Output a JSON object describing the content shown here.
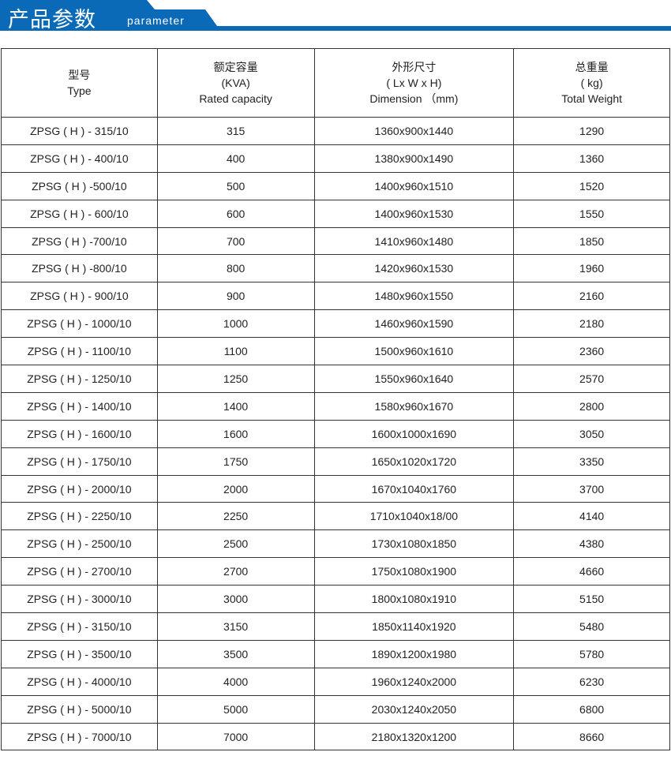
{
  "banner": {
    "title": "产品参数",
    "subtitle": "parameter",
    "color": "#0a6ab8"
  },
  "headers": [
    [
      "型号",
      "Type"
    ],
    [
      "额定容量",
      "(KVA)",
      "Rated capacity"
    ],
    [
      "外形尺寸",
      "( Lx W x H)",
      "Dimension （mm)"
    ],
    [
      "总重量",
      "( kg)",
      "Total Weight"
    ]
  ],
  "rows": [
    [
      "ZPSG ( H ) - 315/10",
      "315",
      "1360x900x1440",
      "1290"
    ],
    [
      "ZPSG ( H ) - 400/10",
      "400",
      "1380x900x1490",
      "1360"
    ],
    [
      "ZPSG ( H ) -500/10",
      "500",
      "1400x960x1510",
      "1520"
    ],
    [
      "ZPSG ( H ) - 600/10",
      "600",
      "1400x960x1530",
      "1550"
    ],
    [
      "ZPSG ( H ) -700/10",
      "700",
      "1410x960x1480",
      "1850"
    ],
    [
      "ZPSG ( H ) -800/10",
      "800",
      "1420x960x1530",
      "1960"
    ],
    [
      "ZPSG ( H ) - 900/10",
      "900",
      "1480x960x1550",
      "2160"
    ],
    [
      "ZPSG ( H ) - 1000/10",
      "1000",
      "1460x960x1590",
      "2180"
    ],
    [
      "ZPSG ( H ) - 1100/10",
      "1100",
      "1500x960x1610",
      "2360"
    ],
    [
      "ZPSG ( H ) - 1250/10",
      "1250",
      "1550x960x1640",
      "2570"
    ],
    [
      "ZPSG ( H ) - 1400/10",
      "1400",
      "1580x960x1670",
      "2800"
    ],
    [
      "ZPSG ( H ) - 1600/10",
      "1600",
      "1600x1000x1690",
      "3050"
    ],
    [
      "ZPSG ( H ) - 1750/10",
      "1750",
      "1650x1020x1720",
      "3350"
    ],
    [
      "ZPSG ( H ) - 2000/10",
      "2000",
      "1670x1040x1760",
      "3700"
    ],
    [
      "ZPSG ( H ) - 2250/10",
      "2250",
      "1710x1040x18/00",
      "4140"
    ],
    [
      "ZPSG ( H ) - 2500/10",
      "2500",
      "1730x1080x1850",
      "4380"
    ],
    [
      "ZPSG ( H ) - 2700/10",
      "2700",
      "1750x1080x1900",
      "4660"
    ],
    [
      "ZPSG ( H ) - 3000/10",
      "3000",
      "1800x1080x1910",
      "5150"
    ],
    [
      "ZPSG ( H ) - 3150/10",
      "3150",
      "1850x1140x1920",
      "5480"
    ],
    [
      "ZPSG ( H ) - 3500/10",
      "3500",
      "1890x1200x1980",
      "5780"
    ],
    [
      "ZPSG ( H ) - 4000/10",
      "4000",
      "1960x1240x2000",
      "6230"
    ],
    [
      "ZPSG ( H ) - 5000/10",
      "5000",
      "2030x1240x2050",
      "6800"
    ],
    [
      "ZPSG ( H ) - 7000/10",
      "7000",
      "2180x1320x1200",
      "8660"
    ]
  ]
}
